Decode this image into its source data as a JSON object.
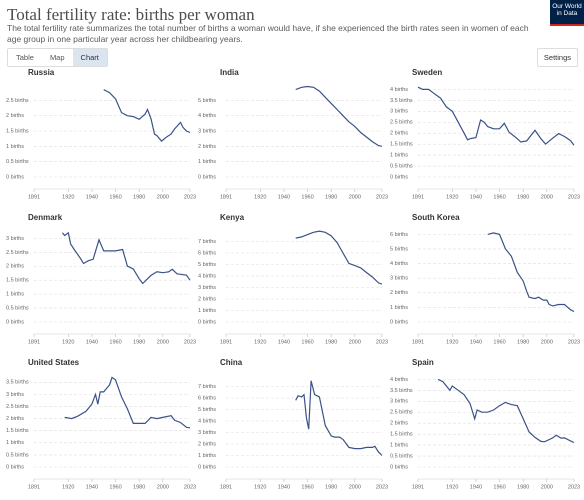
{
  "header": {
    "title": "Total fertility rate: births per woman",
    "subtitle": "The total fertility rate summarizes the total number of births a woman would have, if she experienced the birth rates seen in women of each age group in one particular year across her childbearing years.",
    "logo": "Our World in Data"
  },
  "tabs": [
    "Table",
    "Map",
    "Chart"
  ],
  "settings": "Settings",
  "chart_data": [
    {
      "type": "line",
      "title": "Russia",
      "color": "#3b5287",
      "xlim": [
        1891,
        2023
      ],
      "xticks": [
        1891,
        1920,
        1940,
        1960,
        1980,
        2000,
        2023
      ],
      "ylim": [
        0,
        3
      ],
      "yticks": [
        {
          "value": 0,
          "label": "0 births"
        },
        {
          "value": 0.5,
          "label": "0.5 births"
        },
        {
          "value": 1,
          "label": "1 births"
        },
        {
          "value": 1.5,
          "label": "1.5 births"
        },
        {
          "value": 2,
          "label": "2 births"
        },
        {
          "value": 2.5,
          "label": "2.5 births"
        }
      ],
      "grid": true,
      "x": [
        1950,
        1955,
        1960,
        1965,
        1970,
        1975,
        1980,
        1985,
        1987,
        1990,
        1993,
        1995,
        1999,
        2003,
        2007,
        2010,
        2015,
        2017,
        2020,
        2023
      ],
      "values": [
        2.85,
        2.75,
        2.55,
        2.1,
        2.0,
        1.97,
        1.88,
        2.05,
        2.2,
        1.9,
        1.4,
        1.35,
        1.17,
        1.3,
        1.4,
        1.57,
        1.78,
        1.62,
        1.5,
        1.45
      ]
    },
    {
      "type": "line",
      "title": "India",
      "color": "#3b5287",
      "xlim": [
        1891,
        2023
      ],
      "xticks": [
        1891,
        1920,
        1940,
        1960,
        1980,
        2000,
        2023
      ],
      "ylim": [
        0,
        6
      ],
      "yticks": [
        {
          "value": 0,
          "label": "0 births"
        },
        {
          "value": 1,
          "label": "1 births"
        },
        {
          "value": 2,
          "label": "2 births"
        },
        {
          "value": 3,
          "label": "3 births"
        },
        {
          "value": 4,
          "label": "4 births"
        },
        {
          "value": 5,
          "label": "5 births"
        }
      ],
      "grid": true,
      "x": [
        1950,
        1955,
        1960,
        1965,
        1970,
        1975,
        1980,
        1985,
        1990,
        1995,
        2000,
        2005,
        2010,
        2015,
        2020,
        2023
      ],
      "values": [
        5.7,
        5.85,
        5.9,
        5.85,
        5.6,
        5.2,
        4.8,
        4.4,
        4.0,
        3.6,
        3.3,
        2.9,
        2.6,
        2.3,
        2.05,
        2.0
      ]
    },
    {
      "type": "line",
      "title": "Sweden",
      "color": "#3b5287",
      "xlim": [
        1891,
        2023
      ],
      "xticks": [
        1891,
        1920,
        1940,
        1960,
        1980,
        2000,
        2023
      ],
      "ylim": [
        0,
        4.2
      ],
      "yticks": [
        {
          "value": 0,
          "label": "0 births"
        },
        {
          "value": 0.5,
          "label": "0.5 births"
        },
        {
          "value": 1,
          "label": "1 births"
        },
        {
          "value": 1.5,
          "label": "1.5 births"
        },
        {
          "value": 2,
          "label": "2 births"
        },
        {
          "value": 2.5,
          "label": "2.5 births"
        },
        {
          "value": 3,
          "label": "3 births"
        },
        {
          "value": 3.5,
          "label": "3.5 births"
        },
        {
          "value": 4,
          "label": "4 births"
        }
      ],
      "grid": true,
      "x": [
        1891,
        1895,
        1900,
        1905,
        1910,
        1915,
        1920,
        1925,
        1930,
        1933,
        1935,
        1940,
        1944,
        1947,
        1950,
        1955,
        1960,
        1964,
        1968,
        1975,
        1978,
        1983,
        1990,
        1995,
        1999,
        2005,
        2010,
        2015,
        2020,
        2023
      ],
      "values": [
        4.1,
        4.0,
        4.0,
        3.8,
        3.6,
        3.2,
        3.0,
        2.5,
        2.0,
        1.7,
        1.75,
        1.8,
        2.6,
        2.5,
        2.3,
        2.2,
        2.2,
        2.45,
        2.05,
        1.75,
        1.6,
        1.65,
        2.13,
        1.75,
        1.5,
        1.77,
        1.98,
        1.85,
        1.66,
        1.45
      ]
    },
    {
      "type": "line",
      "title": "Denmark",
      "color": "#3b5287",
      "xlim": [
        1891,
        2023
      ],
      "xticks": [
        1891,
        1920,
        1940,
        1960,
        1980,
        2000,
        2023
      ],
      "ylim": [
        0,
        3.3
      ],
      "yticks": [
        {
          "value": 0,
          "label": "0 births"
        },
        {
          "value": 0.5,
          "label": "0.5 births"
        },
        {
          "value": 1,
          "label": "1 births"
        },
        {
          "value": 1.5,
          "label": "1.5 births"
        },
        {
          "value": 2,
          "label": "2 births"
        },
        {
          "value": 2.5,
          "label": "2.5 births"
        },
        {
          "value": 3,
          "label": "3 births"
        }
      ],
      "grid": true,
      "x": [
        1915,
        1917,
        1920,
        1922,
        1925,
        1930,
        1933,
        1937,
        1941,
        1946,
        1950,
        1955,
        1960,
        1966,
        1970,
        1975,
        1980,
        1983,
        1990,
        1995,
        2000,
        2005,
        2008,
        2012,
        2015,
        2020,
        2023
      ],
      "values": [
        3.2,
        3.1,
        3.2,
        2.8,
        2.6,
        2.3,
        2.1,
        2.2,
        2.25,
        2.95,
        2.55,
        2.55,
        2.55,
        2.6,
        2.0,
        1.9,
        1.55,
        1.38,
        1.67,
        1.8,
        1.77,
        1.8,
        1.89,
        1.73,
        1.71,
        1.68,
        1.5
      ]
    },
    {
      "type": "line",
      "title": "Kenya",
      "color": "#3b5287",
      "xlim": [
        1891,
        2023
      ],
      "xticks": [
        1891,
        1920,
        1940,
        1960,
        1980,
        2000,
        2023
      ],
      "ylim": [
        0,
        8
      ],
      "yticks": [
        {
          "value": 0,
          "label": "0 births"
        },
        {
          "value": 1,
          "label": "1 births"
        },
        {
          "value": 2,
          "label": "2 births"
        },
        {
          "value": 3,
          "label": "3 births"
        },
        {
          "value": 4,
          "label": "4 births"
        },
        {
          "value": 5,
          "label": "5 births"
        },
        {
          "value": 6,
          "label": "6 births"
        },
        {
          "value": 7,
          "label": "7 births"
        }
      ],
      "grid": true,
      "x": [
        1950,
        1955,
        1960,
        1965,
        1970,
        1975,
        1980,
        1985,
        1990,
        1995,
        2000,
        2005,
        2010,
        2015,
        2020,
        2023
      ],
      "values": [
        7.3,
        7.4,
        7.6,
        7.8,
        7.9,
        7.8,
        7.5,
        6.9,
        6.0,
        5.1,
        4.9,
        4.7,
        4.3,
        3.9,
        3.4,
        3.3
      ]
    },
    {
      "type": "line",
      "title": "South Korea",
      "color": "#3b5287",
      "xlim": [
        1891,
        2023
      ],
      "xticks": [
        1891,
        1920,
        1940,
        1960,
        1980,
        2000,
        2023
      ],
      "ylim": [
        0,
        6.3
      ],
      "yticks": [
        {
          "value": 0,
          "label": "0 births"
        },
        {
          "value": 1,
          "label": "1 births"
        },
        {
          "value": 2,
          "label": "2 births"
        },
        {
          "value": 3,
          "label": "3 births"
        },
        {
          "value": 4,
          "label": "4 births"
        },
        {
          "value": 5,
          "label": "5 births"
        },
        {
          "value": 6,
          "label": "6 births"
        }
      ],
      "grid": true,
      "x": [
        1950,
        1955,
        1960,
        1965,
        1970,
        1975,
        1980,
        1983,
        1985,
        1990,
        1993,
        1997,
        2000,
        2002,
        2005,
        2010,
        2015,
        2018,
        2020,
        2023
      ],
      "values": [
        6.0,
        6.1,
        6.0,
        5.0,
        4.5,
        3.4,
        2.8,
        2.1,
        1.7,
        1.6,
        1.7,
        1.5,
        1.5,
        1.2,
        1.1,
        1.2,
        1.2,
        0.98,
        0.84,
        0.72
      ]
    },
    {
      "type": "line",
      "title": "United States",
      "color": "#3b5287",
      "xlim": [
        1891,
        2023
      ],
      "xticks": [
        1891,
        1920,
        1940,
        1960,
        1980,
        2000,
        2023
      ],
      "ylim": [
        0,
        3.8
      ],
      "yticks": [
        {
          "value": 0,
          "label": "0 births"
        },
        {
          "value": 0.5,
          "label": "0.5 births"
        },
        {
          "value": 1,
          "label": "1 births"
        },
        {
          "value": 1.5,
          "label": "1.5 births"
        },
        {
          "value": 2,
          "label": "2 births"
        },
        {
          "value": 2.5,
          "label": "2.5 births"
        },
        {
          "value": 3,
          "label": "3 births"
        },
        {
          "value": 3.5,
          "label": "3.5 births"
        }
      ],
      "grid": true,
      "x": [
        1917,
        1923,
        1928,
        1935,
        1940,
        1943,
        1945,
        1947,
        1950,
        1955,
        1957,
        1960,
        1965,
        1970,
        1975,
        1980,
        1985,
        1990,
        1995,
        2000,
        2007,
        2010,
        2015,
        2020,
        2023
      ],
      "values": [
        2.05,
        2.0,
        2.1,
        2.3,
        2.6,
        3.0,
        2.6,
        3.1,
        3.1,
        3.4,
        3.7,
        3.6,
        2.9,
        2.4,
        1.8,
        1.8,
        1.8,
        2.05,
        2.0,
        2.05,
        2.12,
        1.93,
        1.84,
        1.64,
        1.62
      ]
    },
    {
      "type": "line",
      "title": "China",
      "color": "#3b5287",
      "xlim": [
        1891,
        2023
      ],
      "xticks": [
        1891,
        1920,
        1940,
        1960,
        1980,
        2000,
        2023
      ],
      "ylim": [
        0,
        8
      ],
      "yticks": [
        {
          "value": 0,
          "label": "0 births"
        },
        {
          "value": 1,
          "label": "1 births"
        },
        {
          "value": 2,
          "label": "2 births"
        },
        {
          "value": 3,
          "label": "3 births"
        },
        {
          "value": 4,
          "label": "4 births"
        },
        {
          "value": 5,
          "label": "5 births"
        },
        {
          "value": 6,
          "label": "6 births"
        },
        {
          "value": 7,
          "label": "7 births"
        }
      ],
      "grid": true,
      "x": [
        1950,
        1952,
        1955,
        1957,
        1959,
        1961,
        1963,
        1966,
        1970,
        1975,
        1980,
        1983,
        1987,
        1990,
        1995,
        2000,
        2005,
        2010,
        2015,
        2017,
        2020,
        2023
      ],
      "values": [
        5.8,
        6.2,
        6.1,
        6.3,
        4.3,
        3.3,
        7.5,
        6.3,
        6.1,
        3.6,
        2.7,
        2.6,
        2.6,
        2.4,
        1.7,
        1.6,
        1.6,
        1.7,
        1.7,
        1.8,
        1.3,
        1.0
      ]
    },
    {
      "type": "line",
      "title": "Spain",
      "color": "#3b5287",
      "xlim": [
        1891,
        2023
      ],
      "xticks": [
        1891,
        1920,
        1940,
        1960,
        1980,
        2000,
        2023
      ],
      "ylim": [
        0,
        4.2
      ],
      "yticks": [
        {
          "value": 0,
          "label": "0 births"
        },
        {
          "value": 0.5,
          "label": "0.5 births"
        },
        {
          "value": 1,
          "label": "1 births"
        },
        {
          "value": 1.5,
          "label": "1.5 births"
        },
        {
          "value": 2,
          "label": "2 births"
        },
        {
          "value": 2.5,
          "label": "2.5 births"
        },
        {
          "value": 3,
          "label": "3 births"
        },
        {
          "value": 3.5,
          "label": "3.5 births"
        },
        {
          "value": 4,
          "label": "4 births"
        }
      ],
      "grid": true,
      "x": [
        1908,
        1912,
        1918,
        1920,
        1925,
        1930,
        1935,
        1939,
        1941,
        1945,
        1950,
        1955,
        1960,
        1965,
        1970,
        1975,
        1980,
        1985,
        1990,
        1995,
        1998,
        2005,
        2008,
        2012,
        2015,
        2020,
        2023
      ],
      "values": [
        4.0,
        3.9,
        3.5,
        3.7,
        3.5,
        3.3,
        2.9,
        2.2,
        2.6,
        2.5,
        2.5,
        2.6,
        2.8,
        2.95,
        2.85,
        2.8,
        2.2,
        1.6,
        1.35,
        1.17,
        1.15,
        1.33,
        1.45,
        1.32,
        1.33,
        1.19,
        1.12
      ]
    }
  ]
}
